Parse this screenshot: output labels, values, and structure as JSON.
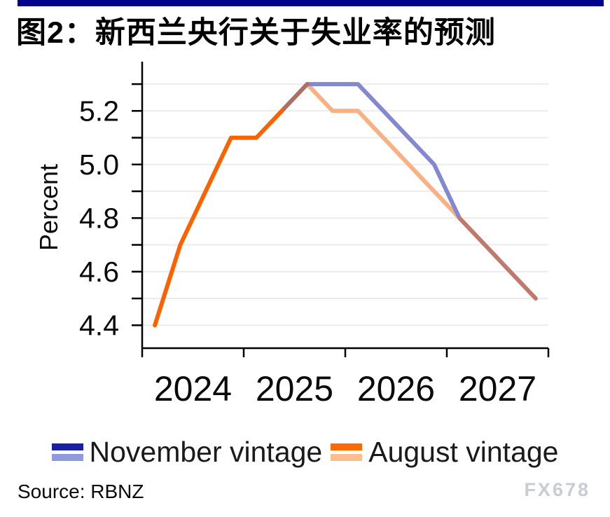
{
  "figure": {
    "title": "图2：新西兰央行关于失业率的预测",
    "accent_bar_color": "#00008B"
  },
  "chart_data": {
    "type": "line",
    "title": "图2：新西兰央行关于失业率的预测",
    "xlabel": "",
    "ylabel": "Percent",
    "grid": "horizontal",
    "ylim": [
      4.4,
      5.3
    ],
    "ytick_step": 0.1,
    "ylabel_step": 0.2,
    "ytick_labels": [
      "4.4",
      "4.6",
      "4.8",
      "5.0",
      "5.2"
    ],
    "xticks": [
      2024,
      2025,
      2026,
      2027,
      2028
    ],
    "xticklabels": [
      "2024",
      "2025",
      "2026",
      "2027"
    ],
    "categories": [
      "2024Q1",
      "2024Q2",
      "2024Q3",
      "2024Q4",
      "2025Q1",
      "2025Q2",
      "2025Q3",
      "2025Q4",
      "2026Q1",
      "2026Q2",
      "2026Q3",
      "2026Q4",
      "2027Q1",
      "2027Q2",
      "2027Q3",
      "2027Q4"
    ],
    "series": [
      {
        "name": "November vintage",
        "color_actual": "#1A1FA8",
        "color_forecast": "#8289D0",
        "values": [
          4.4,
          4.7,
          4.9,
          5.1,
          5.1,
          5.2,
          5.3,
          5.3,
          5.3,
          5.2,
          5.1,
          5.0,
          4.8,
          4.7,
          4.6,
          4.5
        ]
      },
      {
        "name": "August vintage",
        "color_actual": "#FB6302",
        "color_forecast": "#F9B183",
        "values": [
          4.4,
          4.7,
          4.9,
          5.1,
          5.1,
          5.2,
          5.3,
          5.2,
          5.2,
          5.1,
          5.0,
          4.9,
          4.8,
          4.7,
          4.6,
          4.5
        ]
      }
    ],
    "render_segments": [
      {
        "name": "shared-actual-orange",
        "color": "#FB6302",
        "points": [
          [
            2024.125,
            4.4
          ],
          [
            2024.375,
            4.7
          ],
          [
            2024.625,
            4.9
          ],
          [
            2024.875,
            5.1
          ],
          [
            2025.125,
            5.1
          ],
          [
            2025.375,
            5.2
          ]
        ]
      },
      {
        "name": "august-forecast-peach",
        "color": "#F9B183",
        "points": [
          [
            2025.625,
            5.3
          ],
          [
            2025.875,
            5.2
          ],
          [
            2026.125,
            5.2
          ],
          [
            2026.375,
            5.1
          ],
          [
            2026.625,
            5.0
          ],
          [
            2026.875,
            4.9
          ],
          [
            2027.125,
            4.8
          ]
        ]
      },
      {
        "name": "november-forecast-periwinkle",
        "color": "#8289D0",
        "points": [
          [
            2025.625,
            5.3
          ],
          [
            2025.875,
            5.3
          ],
          [
            2026.125,
            5.3
          ],
          [
            2026.375,
            5.2
          ],
          [
            2026.625,
            5.1
          ],
          [
            2026.875,
            5.0
          ],
          [
            2027.125,
            4.8
          ]
        ]
      },
      {
        "name": "overlap-rise-brown",
        "color": "#AE6F63",
        "points": [
          [
            2025.375,
            5.2
          ],
          [
            2025.625,
            5.3
          ]
        ]
      },
      {
        "name": "overlap-tail-terracotta",
        "color": "#C0796C",
        "points": [
          [
            2027.125,
            4.8
          ],
          [
            2027.375,
            4.7
          ],
          [
            2027.625,
            4.6
          ],
          [
            2027.875,
            4.5
          ]
        ]
      }
    ],
    "legend_position": "bottom-center"
  },
  "legend": {
    "items": [
      {
        "label": "November vintage",
        "color_top": "#1A1FA8",
        "color_bottom": "#8E9ADC"
      },
      {
        "label": "August vintage",
        "color_top": "#FF6A00",
        "color_bottom": "#FBBE8E"
      }
    ]
  },
  "footer": {
    "source": "Source: RBNZ",
    "watermark": "FX678"
  }
}
